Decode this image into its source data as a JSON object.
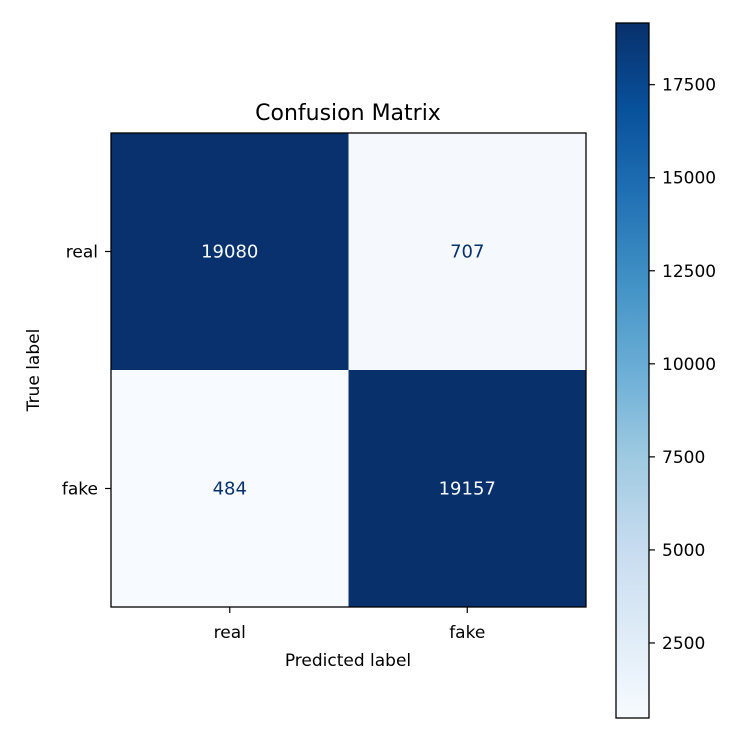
{
  "chart_data": {
    "type": "heatmap",
    "title": "Confusion Matrix",
    "xlabel": "Predicted label",
    "ylabel": "True label",
    "x_categories": [
      "real",
      "fake"
    ],
    "y_categories": [
      "real",
      "fake"
    ],
    "values": [
      [
        19080,
        707
      ],
      [
        484,
        19157
      ]
    ],
    "colormap": "Blues",
    "colorbar": {
      "min": 484,
      "max": 19157,
      "ticks": [
        2500,
        5000,
        7500,
        10000,
        12500,
        15000,
        17500
      ]
    },
    "grid": false
  }
}
